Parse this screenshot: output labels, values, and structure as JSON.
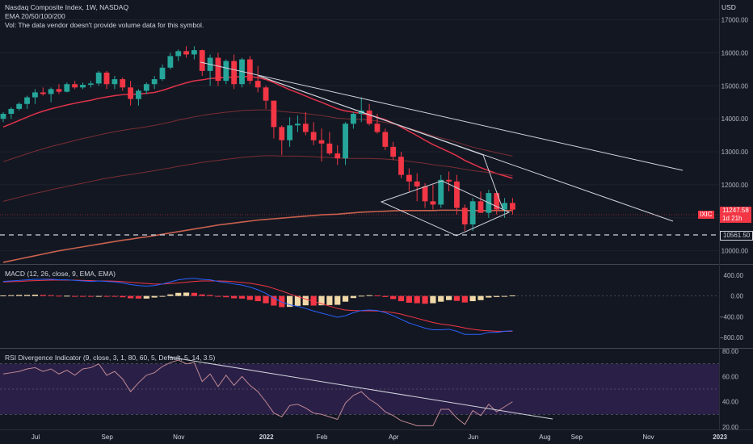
{
  "header": {
    "symbol_line": "Nasdaq Composite Index, 1W, NASDAQ",
    "ema_line": "EMA 20/50/100/200",
    "vol_line": "Vol: The data vendor doesn't provide volume data for this symbol.",
    "currency": "USD"
  },
  "panels": {
    "macd_title": "MACD (12, 26, close, 9, EMA, EMA)",
    "rsi_title": "RSI Divergence Indicator (9, close, 3, 1, 80, 60, 5, Default, 5, 14, 3.5)"
  },
  "price_tags": {
    "symbol_tag": "IXIC",
    "last_price": "11247.58",
    "countdown": "1d 21h",
    "support_level": "10561.50"
  },
  "colors": {
    "background": "#131722",
    "up": "#26a69a",
    "down": "#f23645",
    "ema20": "#e0334a",
    "ema_other": "#7a2e33",
    "ema200": "#c9614e",
    "trendline": "#d1d4dc",
    "macd_line": "#2962ff",
    "signal_line": "#f23645",
    "hist_pos": "#f0d9a8",
    "hist_neg": "#f23645",
    "rsi_line": "#c08a94",
    "rsi_band": "#2a1f47"
  },
  "chart_data": [
    {
      "type": "candlestick",
      "title": "Nasdaq Composite Index, 1W, NASDAQ",
      "ylim": [
        9600,
        17600
      ],
      "y_ticks": [
        10000,
        11000,
        12000,
        13000,
        14000,
        15000,
        16000,
        17000
      ],
      "y_tick_labels": [
        "10000.00",
        "11000.00",
        "12000.00",
        "13000.00",
        "14000.00",
        "15000.00",
        "16000.00",
        "17000.00"
      ],
      "x_labels": [
        "Jul",
        "Sep",
        "Nov",
        "2022",
        "Feb",
        "Apr",
        "Jun",
        "Aug",
        "Sep",
        "Nov",
        "2023"
      ],
      "x_label_weeks": [
        0,
        9,
        18,
        29,
        36,
        45,
        55,
        64,
        68,
        77,
        86
      ],
      "candles": [
        {
          "o": 14000,
          "h": 14200,
          "l": 13900,
          "c": 14150
        },
        {
          "o": 14150,
          "h": 14350,
          "l": 14000,
          "c": 14300
        },
        {
          "o": 14300,
          "h": 14500,
          "l": 14250,
          "c": 14450
        },
        {
          "o": 14450,
          "h": 14700,
          "l": 14300,
          "c": 14650
        },
        {
          "o": 14650,
          "h": 14900,
          "l": 14450,
          "c": 14800
        },
        {
          "o": 14800,
          "h": 14950,
          "l": 14700,
          "c": 14750
        },
        {
          "o": 14750,
          "h": 14950,
          "l": 14500,
          "c": 14900
        },
        {
          "o": 14900,
          "h": 15050,
          "l": 14750,
          "c": 14820
        },
        {
          "o": 14820,
          "h": 15100,
          "l": 14800,
          "c": 15050
        },
        {
          "o": 15050,
          "h": 15150,
          "l": 14900,
          "c": 14950
        },
        {
          "o": 14950,
          "h": 15100,
          "l": 14900,
          "c": 15030
        },
        {
          "o": 15030,
          "h": 15150,
          "l": 14950,
          "c": 15070
        },
        {
          "o": 15070,
          "h": 15450,
          "l": 15000,
          "c": 15400
        },
        {
          "o": 15400,
          "h": 15450,
          "l": 14900,
          "c": 15050
        },
        {
          "o": 15050,
          "h": 15300,
          "l": 14900,
          "c": 15200
        },
        {
          "o": 15200,
          "h": 15250,
          "l": 14850,
          "c": 14950
        },
        {
          "o": 14950,
          "h": 15150,
          "l": 14400,
          "c": 14600
        },
        {
          "o": 14600,
          "h": 14900,
          "l": 14400,
          "c": 14850
        },
        {
          "o": 14850,
          "h": 15100,
          "l": 14750,
          "c": 15050
        },
        {
          "o": 15050,
          "h": 15300,
          "l": 14900,
          "c": 15200
        },
        {
          "o": 15200,
          "h": 15650,
          "l": 15150,
          "c": 15550
        },
        {
          "o": 15550,
          "h": 16000,
          "l": 15500,
          "c": 15900
        },
        {
          "o": 15900,
          "h": 16100,
          "l": 15750,
          "c": 16050
        },
        {
          "o": 16050,
          "h": 16200,
          "l": 15850,
          "c": 15950
        },
        {
          "o": 15950,
          "h": 16200,
          "l": 15800,
          "c": 16080
        },
        {
          "o": 16080,
          "h": 16100,
          "l": 15300,
          "c": 15450
        },
        {
          "o": 15450,
          "h": 15950,
          "l": 15000,
          "c": 15850
        },
        {
          "o": 15850,
          "h": 16000,
          "l": 15000,
          "c": 15150
        },
        {
          "o": 15150,
          "h": 15800,
          "l": 15050,
          "c": 15750
        },
        {
          "o": 15750,
          "h": 15950,
          "l": 14900,
          "c": 15050
        },
        {
          "o": 15050,
          "h": 15850,
          "l": 14950,
          "c": 15800
        },
        {
          "o": 15800,
          "h": 15900,
          "l": 15050,
          "c": 15150
        },
        {
          "o": 15150,
          "h": 15600,
          "l": 14800,
          "c": 14950
        },
        {
          "o": 14950,
          "h": 15000,
          "l": 14300,
          "c": 14550
        },
        {
          "o": 14550,
          "h": 14550,
          "l": 13400,
          "c": 13750
        },
        {
          "o": 13750,
          "h": 13800,
          "l": 12900,
          "c": 13350
        },
        {
          "o": 13350,
          "h": 14050,
          "l": 13150,
          "c": 13800
        },
        {
          "o": 13800,
          "h": 14100,
          "l": 13600,
          "c": 13850
        },
        {
          "o": 13850,
          "h": 14200,
          "l": 13500,
          "c": 13600
        },
        {
          "o": 13600,
          "h": 13900,
          "l": 13200,
          "c": 13350
        },
        {
          "o": 13350,
          "h": 13700,
          "l": 12700,
          "c": 13250
        },
        {
          "o": 13250,
          "h": 13600,
          "l": 12900,
          "c": 12950
        },
        {
          "o": 12950,
          "h": 13200,
          "l": 12600,
          "c": 12800
        },
        {
          "o": 12800,
          "h": 13900,
          "l": 12600,
          "c": 13850
        },
        {
          "o": 13850,
          "h": 14200,
          "l": 13700,
          "c": 14150
        },
        {
          "o": 14150,
          "h": 14650,
          "l": 13900,
          "c": 14250
        },
        {
          "o": 14250,
          "h": 14450,
          "l": 13800,
          "c": 13850
        },
        {
          "o": 13850,
          "h": 14150,
          "l": 13550,
          "c": 13600
        },
        {
          "o": 13600,
          "h": 13700,
          "l": 13050,
          "c": 13150
        },
        {
          "o": 13150,
          "h": 13300,
          "l": 12750,
          "c": 12850
        },
        {
          "o": 12850,
          "h": 13000,
          "l": 12200,
          "c": 12300
        },
        {
          "o": 12300,
          "h": 12500,
          "l": 11800,
          "c": 12100
        },
        {
          "o": 12100,
          "h": 12350,
          "l": 11500,
          "c": 11950
        },
        {
          "o": 11950,
          "h": 12050,
          "l": 11300,
          "c": 11500
        },
        {
          "o": 11500,
          "h": 12000,
          "l": 11250,
          "c": 11400
        },
        {
          "o": 11400,
          "h": 12300,
          "l": 11300,
          "c": 12150
        },
        {
          "o": 12150,
          "h": 12400,
          "l": 11800,
          "c": 12100
        },
        {
          "o": 12100,
          "h": 12300,
          "l": 11100,
          "c": 11300
        },
        {
          "o": 11300,
          "h": 11400,
          "l": 10600,
          "c": 10800
        },
        {
          "o": 10800,
          "h": 11600,
          "l": 10600,
          "c": 11500
        },
        {
          "o": 11500,
          "h": 11800,
          "l": 11200,
          "c": 11150
        },
        {
          "o": 11150,
          "h": 11850,
          "l": 11000,
          "c": 11750
        },
        {
          "o": 11750,
          "h": 11800,
          "l": 11100,
          "c": 11250
        },
        {
          "o": 11250,
          "h": 11600,
          "l": 11000,
          "c": 11450
        },
        {
          "o": 11450,
          "h": 11600,
          "l": 11100,
          "c": 11247
        }
      ],
      "ema": [
        {
          "name": "EMA 20",
          "values": [
            13750,
            13850,
            13950,
            14050,
            14150,
            14230,
            14300,
            14360,
            14420,
            14470,
            14520,
            14560,
            14620,
            14660,
            14700,
            14730,
            14740,
            14750,
            14770,
            14800,
            14860,
            14940,
            15020,
            15090,
            15150,
            15180,
            15220,
            15240,
            15260,
            15260,
            15280,
            15280,
            15250,
            15190,
            15100,
            14990,
            14880,
            14790,
            14690,
            14590,
            14500,
            14400,
            14300,
            14240,
            14200,
            14160,
            14110,
            14050,
            13970,
            13870,
            13750,
            13620,
            13490,
            13350,
            13220,
            13110,
            13000,
            12880,
            12740,
            12630,
            12520,
            12430,
            12340,
            12270,
            12200
          ]
        },
        {
          "name": "EMA 50",
          "values": [
            12700,
            12780,
            12860,
            12940,
            13020,
            13090,
            13160,
            13220,
            13280,
            13340,
            13400,
            13450,
            13510,
            13560,
            13610,
            13650,
            13690,
            13720,
            13760,
            13800,
            13850,
            13900,
            13960,
            14010,
            14060,
            14100,
            14140,
            14170,
            14200,
            14220,
            14250,
            14260,
            14270,
            14270,
            14250,
            14220,
            14200,
            14180,
            14160,
            14130,
            14100,
            14060,
            14020,
            14000,
            13990,
            13980,
            13960,
            13930,
            13890,
            13840,
            13780,
            13710,
            13640,
            13560,
            13480,
            13420,
            13360,
            13290,
            13210,
            13140,
            13080,
            13030,
            12970,
            12920,
            12870
          ]
        },
        {
          "name": "EMA 100",
          "values": [
            11500,
            11560,
            11620,
            11680,
            11740,
            11790,
            11850,
            11900,
            11950,
            12000,
            12050,
            12100,
            12150,
            12200,
            12240,
            12280,
            12310,
            12350,
            12390,
            12430,
            12470,
            12510,
            12560,
            12600,
            12640,
            12680,
            12710,
            12740,
            12770,
            12800,
            12830,
            12850,
            12870,
            12880,
            12880,
            12870,
            12870,
            12870,
            12860,
            12850,
            12840,
            12830,
            12810,
            12800,
            12800,
            12800,
            12800,
            12790,
            12780,
            12760,
            12740,
            12710,
            12680,
            12650,
            12610,
            12580,
            12550,
            12510,
            12470,
            12430,
            12400,
            12370,
            12340,
            12310,
            12280
          ]
        },
        {
          "name": "EMA 200",
          "values": [
            9650,
            9700,
            9750,
            9800,
            9850,
            9900,
            9950,
            10000,
            10040,
            10080,
            10120,
            10160,
            10200,
            10240,
            10280,
            10320,
            10350,
            10390,
            10420,
            10460,
            10500,
            10540,
            10580,
            10620,
            10660,
            10700,
            10740,
            10780,
            10810,
            10840,
            10870,
            10900,
            10930,
            10950,
            10970,
            10990,
            11010,
            11030,
            11050,
            11070,
            11090,
            11100,
            11110,
            11130,
            11150,
            11170,
            11180,
            11190,
            11200,
            11210,
            11220,
            11220,
            11220,
            11220,
            11220,
            11230,
            11230,
            11230,
            11220,
            11220,
            11220,
            11220,
            11220,
            11220,
            11220
          ]
        }
      ]
    },
    {
      "type": "macd",
      "title": "MACD (12, 26, close, 9, EMA, EMA)",
      "ylim": [
        -1000,
        600
      ],
      "y_ticks": [
        400,
        0,
        -400,
        -800
      ],
      "y_tick_labels": [
        "400.00",
        "0.00",
        "−400.00",
        "−800.00"
      ],
      "macd": [
        280,
        290,
        300,
        310,
        320,
        320,
        320,
        310,
        310,
        300,
        290,
        280,
        290,
        280,
        270,
        250,
        220,
        200,
        190,
        200,
        230,
        270,
        310,
        330,
        340,
        320,
        310,
        280,
        260,
        230,
        210,
        170,
        120,
        50,
        -40,
        -120,
        -170,
        -200,
        -240,
        -290,
        -330,
        -370,
        -410,
        -380,
        -320,
        -280,
        -270,
        -280,
        -320,
        -380,
        -450,
        -520,
        -570,
        -620,
        -650,
        -650,
        -640,
        -680,
        -740,
        -740,
        -740,
        -700,
        -700,
        -680,
        -670
      ],
      "signal": [
        270,
        275,
        280,
        290,
        295,
        300,
        305,
        305,
        305,
        305,
        300,
        295,
        290,
        290,
        285,
        275,
        265,
        250,
        240,
        230,
        230,
        240,
        250,
        265,
        280,
        290,
        290,
        290,
        285,
        275,
        260,
        245,
        220,
        190,
        145,
        95,
        40,
        -10,
        -60,
        -105,
        -150,
        -195,
        -240,
        -270,
        -280,
        -285,
        -285,
        -290,
        -300,
        -320,
        -350,
        -390,
        -430,
        -470,
        -510,
        -540,
        -560,
        -585,
        -615,
        -640,
        -660,
        -670,
        -680,
        -680,
        -680
      ]
    },
    {
      "type": "line",
      "title": "RSI Divergence Indicator (9, close, 3, 1, 80, 60, 5, Default, 5, 14, 3.5)",
      "ylim": [
        18,
        82
      ],
      "y_ticks": [
        80,
        60,
        40,
        20
      ],
      "y_tick_labels": [
        "80.00",
        "60.00",
        "40.00",
        "20.00"
      ],
      "bands": [
        30,
        70
      ],
      "midline": 50,
      "series": [
        {
          "values": [
            62,
            63,
            64,
            66,
            67,
            64,
            66,
            62,
            65,
            61,
            66,
            67,
            70,
            61,
            64,
            58,
            48,
            55,
            61,
            63,
            68,
            71,
            73,
            70,
            71,
            56,
            62,
            52,
            61,
            53,
            60,
            53,
            48,
            40,
            31,
            28,
            37,
            38,
            35,
            31,
            30,
            28,
            26,
            39,
            45,
            48,
            42,
            38,
            32,
            29,
            25,
            23,
            21,
            21,
            21,
            34,
            34,
            27,
            22,
            33,
            29,
            38,
            32,
            36,
            40
          ]
        }
      ]
    }
  ]
}
